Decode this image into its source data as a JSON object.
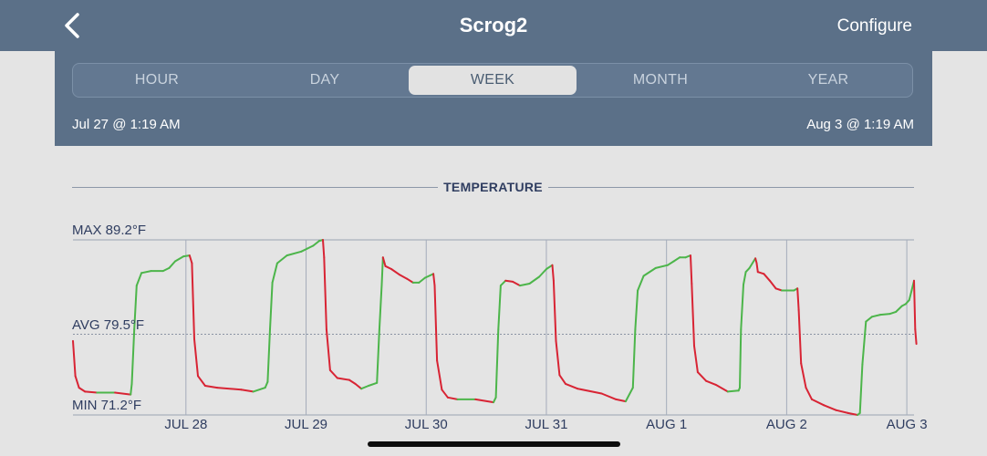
{
  "nav": {
    "back_icon": "chevron-left-icon",
    "title": "Scrog2",
    "configure_label": "Configure"
  },
  "range": {
    "segments": [
      {
        "label": "HOUR",
        "active": false
      },
      {
        "label": "DAY",
        "active": false
      },
      {
        "label": "WEEK",
        "active": true
      },
      {
        "label": "MONTH",
        "active": false
      },
      {
        "label": "YEAR",
        "active": false
      }
    ],
    "start": "Jul 27 @ 1:19 AM",
    "end": "Aug 3 @ 1:19 AM"
  },
  "colors": {
    "header": "#5b7088",
    "rising": "#4cb54a",
    "falling": "#d82434",
    "axis_text": "#2f3d60"
  },
  "chart_data": {
    "type": "line",
    "title": "TEMPERATURE",
    "unit": "°F",
    "max_label": "MAX 89.2°F",
    "avg_label": "AVG 79.5°F",
    "min_label": "MIN 71.2°F",
    "ylim": [
      71.2,
      89.2
    ],
    "avg": 79.5,
    "xlim": [
      0,
      7
    ],
    "x_ticks": [
      {
        "x": 0.94,
        "label": "JUL 28"
      },
      {
        "x": 1.94,
        "label": "JUL 29"
      },
      {
        "x": 2.94,
        "label": "JUL 30"
      },
      {
        "x": 3.94,
        "label": "JUL 31"
      },
      {
        "x": 4.94,
        "label": "AUG 1"
      },
      {
        "x": 5.94,
        "label": "AUG 2"
      },
      {
        "x": 6.94,
        "label": "AUG 3"
      }
    ],
    "grid": true,
    "x_unit": "days since Jul 27 1:19 AM",
    "points": [
      [
        0.0,
        78.8
      ],
      [
        0.02,
        75.2
      ],
      [
        0.05,
        74.0
      ],
      [
        0.1,
        73.6
      ],
      [
        0.2,
        73.5
      ],
      [
        0.35,
        73.5
      ],
      [
        0.48,
        73.3
      ],
      [
        0.49,
        74.4
      ],
      [
        0.51,
        80.0
      ],
      [
        0.53,
        84.5
      ],
      [
        0.57,
        85.8
      ],
      [
        0.65,
        86.0
      ],
      [
        0.75,
        86.0
      ],
      [
        0.8,
        86.3
      ],
      [
        0.85,
        87.0
      ],
      [
        0.92,
        87.5
      ],
      [
        0.97,
        87.6
      ],
      [
        0.99,
        86.8
      ],
      [
        1.01,
        79.0
      ],
      [
        1.04,
        75.2
      ],
      [
        1.1,
        74.2
      ],
      [
        1.2,
        74.0
      ],
      [
        1.4,
        73.8
      ],
      [
        1.5,
        73.6
      ],
      [
        1.6,
        74.0
      ],
      [
        1.62,
        74.6
      ],
      [
        1.64,
        80.0
      ],
      [
        1.66,
        84.8
      ],
      [
        1.7,
        86.8
      ],
      [
        1.78,
        87.6
      ],
      [
        1.9,
        88.0
      ],
      [
        1.95,
        88.3
      ],
      [
        2.0,
        88.6
      ],
      [
        2.05,
        89.1
      ],
      [
        2.08,
        89.2
      ],
      [
        2.09,
        87.4
      ],
      [
        2.11,
        80.0
      ],
      [
        2.14,
        75.8
      ],
      [
        2.2,
        75.0
      ],
      [
        2.3,
        74.8
      ],
      [
        2.35,
        74.4
      ],
      [
        2.4,
        73.9
      ],
      [
        2.46,
        74.2
      ],
      [
        2.53,
        74.5
      ],
      [
        2.55,
        80.0
      ],
      [
        2.57,
        84.6
      ],
      [
        2.58,
        87.4
      ],
      [
        2.6,
        86.5
      ],
      [
        2.65,
        86.2
      ],
      [
        2.72,
        85.6
      ],
      [
        2.78,
        85.2
      ],
      [
        2.83,
        84.8
      ],
      [
        2.88,
        84.8
      ],
      [
        2.93,
        85.3
      ],
      [
        3.0,
        85.7
      ],
      [
        3.01,
        84.5
      ],
      [
        3.03,
        76.8
      ],
      [
        3.07,
        73.8
      ],
      [
        3.12,
        73.0
      ],
      [
        3.2,
        72.8
      ],
      [
        3.35,
        72.8
      ],
      [
        3.5,
        72.5
      ],
      [
        3.52,
        73.0
      ],
      [
        3.54,
        80.0
      ],
      [
        3.56,
        84.5
      ],
      [
        3.6,
        85.0
      ],
      [
        3.66,
        84.9
      ],
      [
        3.72,
        84.5
      ],
      [
        3.8,
        84.7
      ],
      [
        3.88,
        85.4
      ],
      [
        3.94,
        86.2
      ],
      [
        3.99,
        86.6
      ],
      [
        4.0,
        85.0
      ],
      [
        4.02,
        78.8
      ],
      [
        4.05,
        75.3
      ],
      [
        4.1,
        74.4
      ],
      [
        4.2,
        73.9
      ],
      [
        4.4,
        73.4
      ],
      [
        4.52,
        72.8
      ],
      [
        4.6,
        72.6
      ],
      [
        4.66,
        74.0
      ],
      [
        4.68,
        80.0
      ],
      [
        4.7,
        84.0
      ],
      [
        4.75,
        85.5
      ],
      [
        4.85,
        86.3
      ],
      [
        4.95,
        86.6
      ],
      [
        5.0,
        87.0
      ],
      [
        5.05,
        87.4
      ],
      [
        5.1,
        87.4
      ],
      [
        5.14,
        87.6
      ],
      [
        5.15,
        84.7
      ],
      [
        5.17,
        78.3
      ],
      [
        5.2,
        75.6
      ],
      [
        5.27,
        74.7
      ],
      [
        5.35,
        74.3
      ],
      [
        5.45,
        73.6
      ],
      [
        5.54,
        73.7
      ],
      [
        5.55,
        74.0
      ],
      [
        5.56,
        80.0
      ],
      [
        5.58,
        84.6
      ],
      [
        5.6,
        85.9
      ],
      [
        5.63,
        86.3
      ],
      [
        5.68,
        87.3
      ],
      [
        5.69,
        86.8
      ],
      [
        5.7,
        85.9
      ],
      [
        5.75,
        85.7
      ],
      [
        5.8,
        85.0
      ],
      [
        5.85,
        84.2
      ],
      [
        5.9,
        84.0
      ],
      [
        6.0,
        84.0
      ],
      [
        6.03,
        84.2
      ],
      [
        6.04,
        82.0
      ],
      [
        6.06,
        76.5
      ],
      [
        6.1,
        74.0
      ],
      [
        6.15,
        72.8
      ],
      [
        6.25,
        72.2
      ],
      [
        6.35,
        71.7
      ],
      [
        6.45,
        71.4
      ],
      [
        6.53,
        71.2
      ],
      [
        6.55,
        71.4
      ],
      [
        6.57,
        76.4
      ],
      [
        6.6,
        80.8
      ],
      [
        6.65,
        81.3
      ],
      [
        6.72,
        81.5
      ],
      [
        6.8,
        81.6
      ],
      [
        6.85,
        81.8
      ],
      [
        6.9,
        82.4
      ],
      [
        6.93,
        82.6
      ],
      [
        6.96,
        83.0
      ],
      [
        6.98,
        84.0
      ],
      [
        7.0,
        85.0
      ],
      [
        7.01,
        80.0
      ],
      [
        7.02,
        78.5
      ]
    ]
  }
}
